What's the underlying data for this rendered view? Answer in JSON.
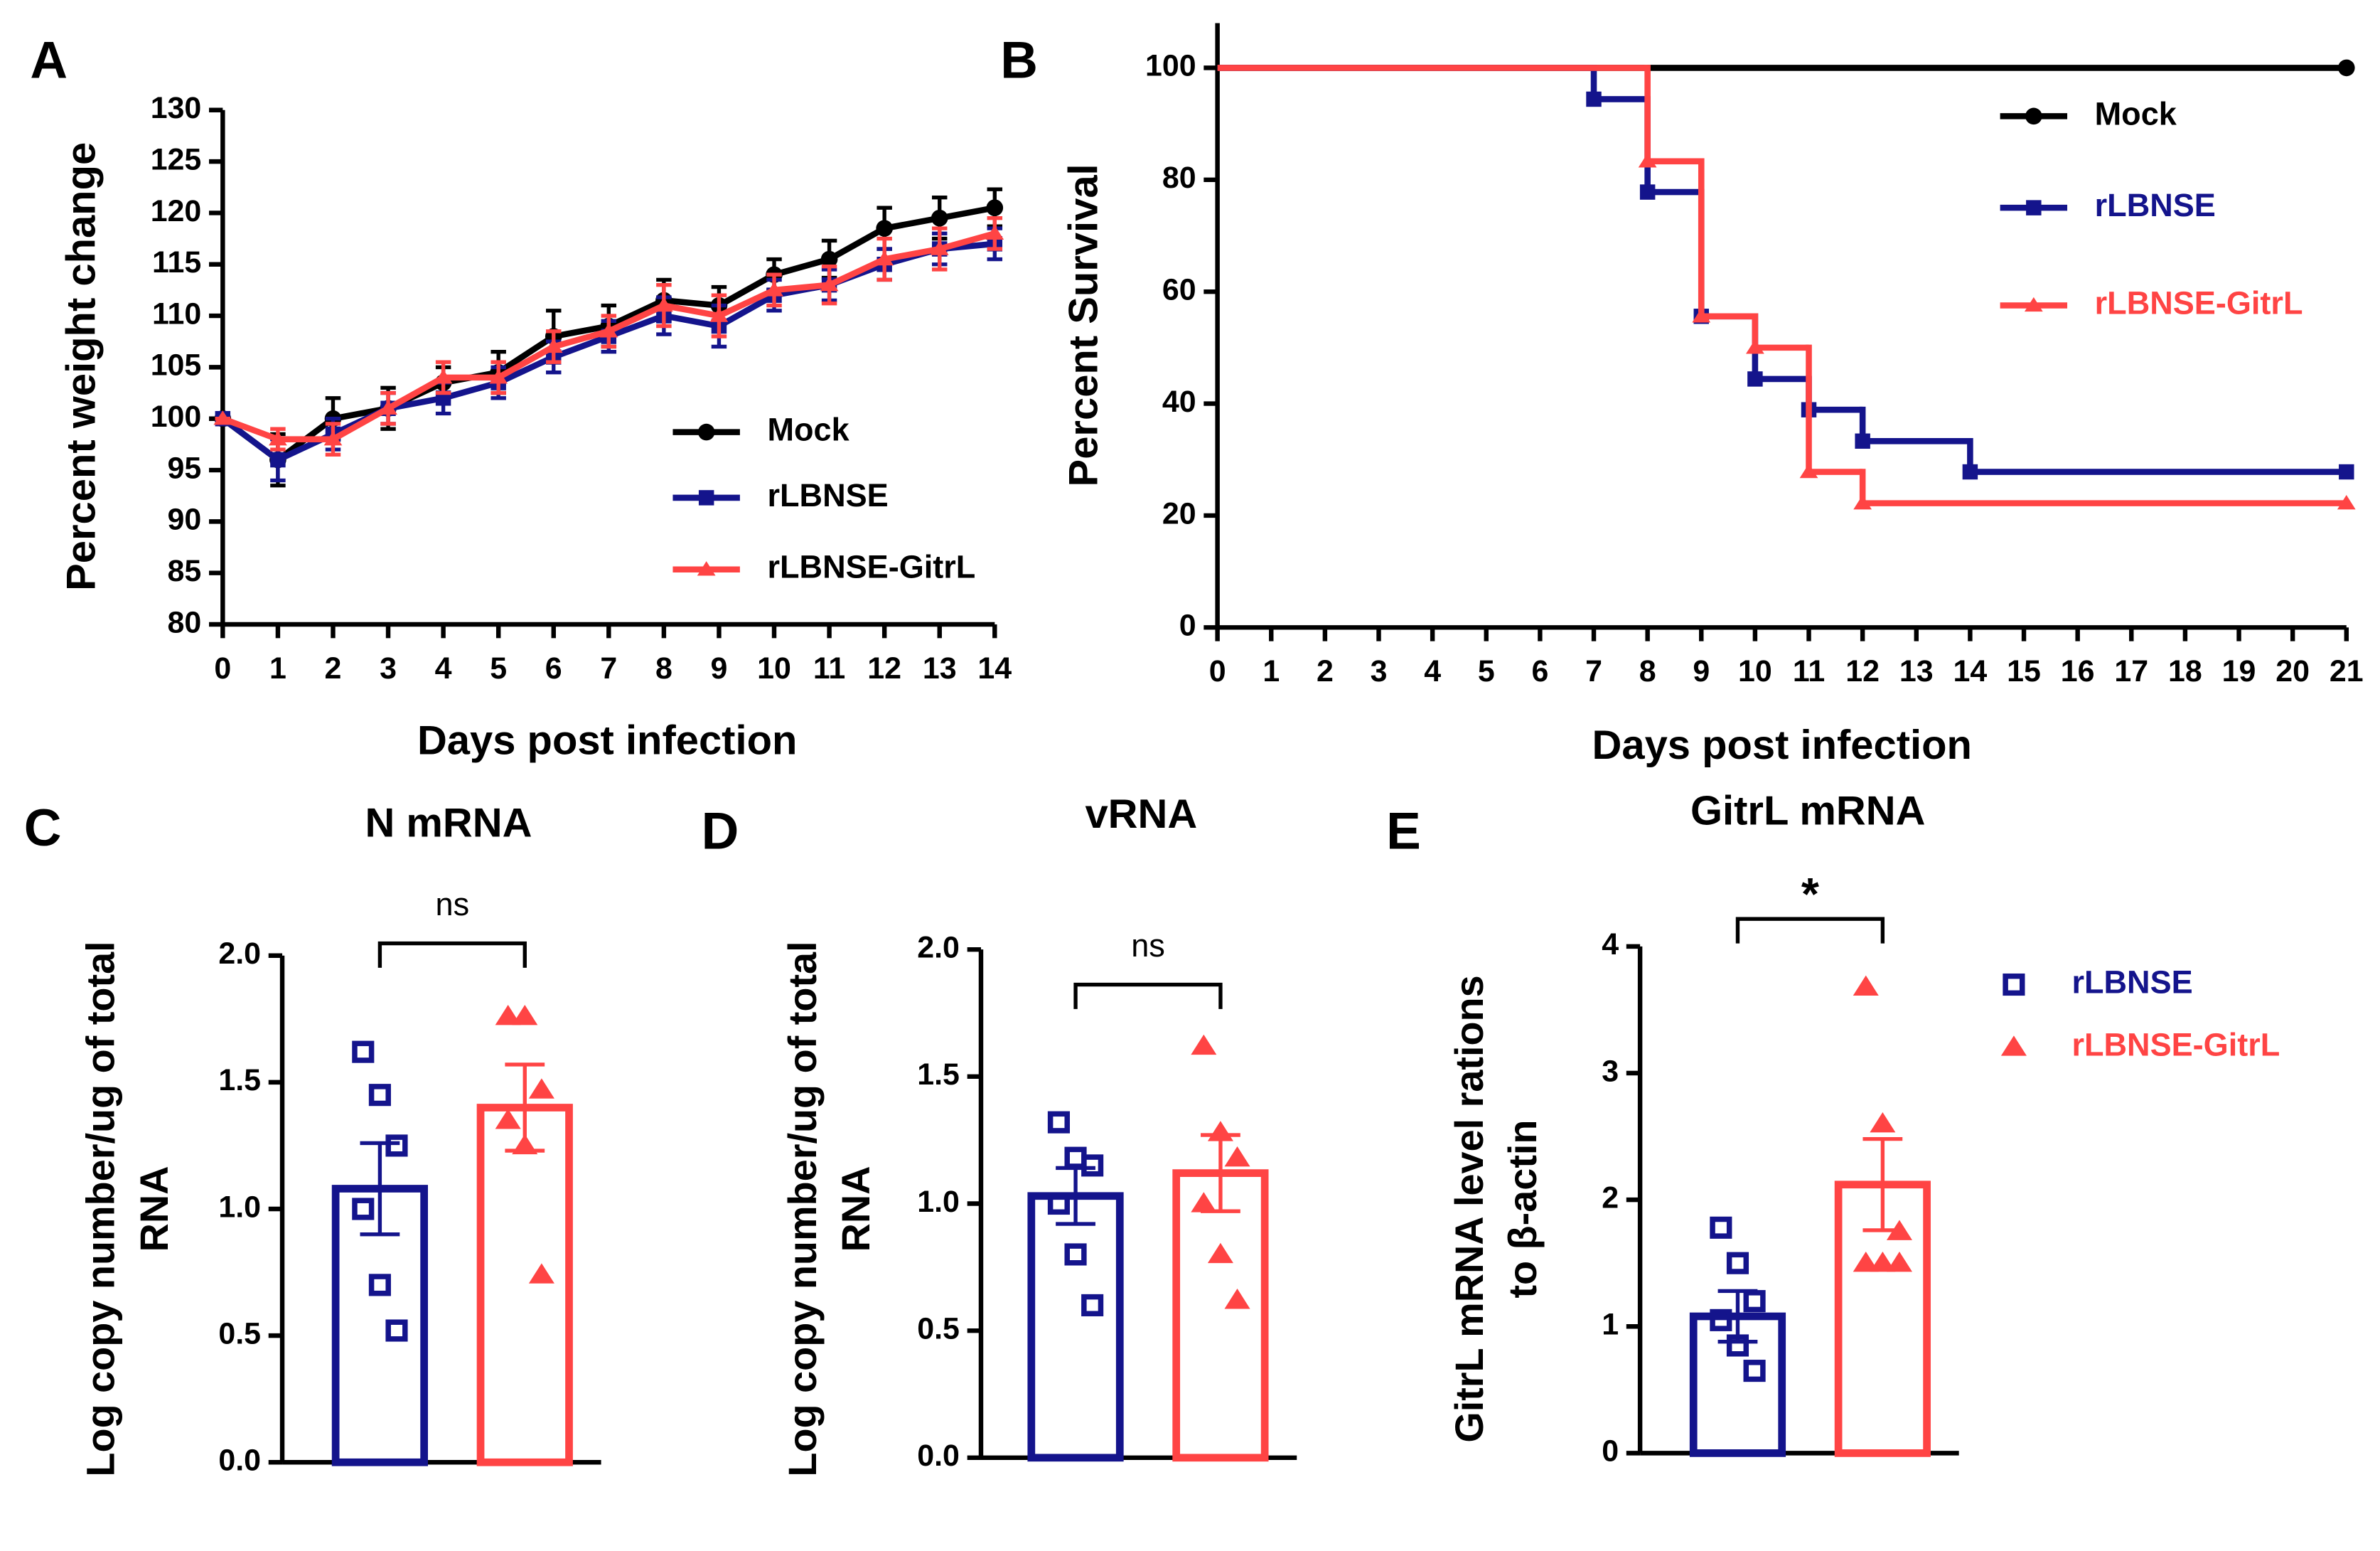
{
  "chart_data": [
    {
      "type": "line",
      "panel_label": "A",
      "xlabel": "Days post infection",
      "ylabel": "Percent weight change",
      "x": [
        0,
        1,
        2,
        3,
        4,
        5,
        6,
        7,
        8,
        9,
        10,
        11,
        12,
        13,
        14
      ],
      "xlim": [
        0,
        14
      ],
      "xticks": [
        0,
        1,
        2,
        3,
        4,
        5,
        6,
        7,
        8,
        9,
        10,
        11,
        12,
        13,
        14
      ],
      "ylim": [
        80,
        130
      ],
      "yticks": [
        80,
        85,
        90,
        95,
        100,
        105,
        110,
        115,
        120,
        125,
        130
      ],
      "series": [
        {
          "name": "Mock",
          "color": "#000000",
          "marker": "circle",
          "values": [
            100,
            96,
            100,
            101,
            103.5,
            104.5,
            108,
            109,
            111.5,
            111,
            114,
            115.5,
            118.5,
            119.5,
            120.5
          ],
          "errors": [
            0,
            2.5,
            2,
            2,
            1.5,
            2,
            2.5,
            2,
            2,
            1.8,
            1.5,
            1.8,
            2,
            2,
            1.8
          ]
        },
        {
          "name": "rLBNSE",
          "color": "#14148c",
          "marker": "square",
          "values": [
            100,
            96,
            98.5,
            101,
            102,
            103.5,
            106,
            108,
            110,
            109,
            112,
            113,
            115,
            116.5,
            117
          ],
          "errors": [
            0,
            2,
            1.5,
            1.5,
            1.5,
            1.5,
            1.5,
            1.5,
            1.8,
            2,
            1.5,
            1.5,
            1.5,
            1.5,
            1.5
          ]
        },
        {
          "name": "rLBNSE-GitrL",
          "color": "#ff4444",
          "marker": "triangle",
          "values": [
            100,
            98,
            98,
            101,
            104,
            104,
            107,
            108.5,
            111,
            110,
            112.5,
            113,
            115.5,
            116.5,
            118
          ],
          "errors": [
            0,
            1,
            1.5,
            1.5,
            1.5,
            1.5,
            1.5,
            1.5,
            2,
            2,
            1.5,
            1.8,
            2,
            2,
            1.5
          ]
        }
      ]
    },
    {
      "type": "step",
      "panel_label": "B",
      "xlabel": "Days post infection",
      "ylabel": "Percent Survival",
      "xlim": [
        0,
        21
      ],
      "xticks": [
        0,
        1,
        2,
        3,
        4,
        5,
        6,
        7,
        8,
        9,
        10,
        11,
        12,
        13,
        14,
        15,
        16,
        17,
        18,
        19,
        20,
        21
      ],
      "ylim": [
        0,
        108
      ],
      "yticks": [
        0,
        20,
        40,
        60,
        80,
        100
      ],
      "series": [
        {
          "name": "Mock",
          "color": "#000000",
          "marker": "circle",
          "x": [
            0,
            21
          ],
          "values": [
            100,
            100
          ]
        },
        {
          "name": "rLBNSE",
          "color": "#14148c",
          "marker": "square",
          "x": [
            0,
            7,
            8,
            9,
            10,
            11,
            12,
            14,
            21
          ],
          "values": [
            100,
            94.4,
            77.8,
            55.6,
            44.4,
            38.9,
            33.3,
            27.8,
            27.8
          ]
        },
        {
          "name": "rLBNSE-GitrL",
          "color": "#ff4444",
          "marker": "triangle",
          "x": [
            0,
            8,
            9,
            10,
            11,
            12,
            21
          ],
          "values": [
            100,
            83.3,
            55.6,
            50,
            27.8,
            22.2,
            22.2
          ]
        }
      ]
    },
    {
      "type": "bar",
      "panel_label": "C",
      "title": "N mRNA",
      "ylabel": [
        "Log copy number/ug of total",
        "RNA"
      ],
      "ylim": [
        0,
        2
      ],
      "yticks": [
        {
          "value": 0,
          "label": "0.0"
        },
        0.5,
        {
          "value": 1,
          "label": "1.0"
        },
        1.5,
        {
          "value": 2,
          "label": "2.0"
        }
      ],
      "annotation": "ns",
      "series": [
        {
          "color": "#14148c",
          "marker": "square-open",
          "values": [
            1.08
          ],
          "errors": [
            0.18
          ],
          "points": [
            1.62,
            1.45,
            1.25,
            1.0,
            0.7,
            0.52
          ]
        },
        {
          "color": "#ff4444",
          "marker": "triangle",
          "values": [
            1.4
          ],
          "errors": [
            0.17
          ],
          "points": [
            1.76,
            1.76,
            1.47,
            1.35,
            1.25,
            0.74
          ]
        }
      ]
    },
    {
      "type": "bar",
      "panel_label": "D",
      "title": "vRNA",
      "ylabel": [
        "Log copy number/ug of total",
        "RNA"
      ],
      "ylim": [
        0,
        2
      ],
      "yticks": [
        {
          "value": 0,
          "label": "0.0"
        },
        0.5,
        {
          "value": 1,
          "label": "1.0"
        },
        1.5,
        {
          "value": 2,
          "label": "2.0"
        }
      ],
      "annotation": "ns",
      "series": [
        {
          "color": "#14148c",
          "marker": "square-open",
          "values": [
            1.03
          ],
          "errors": [
            0.11
          ],
          "points": [
            1.32,
            1.18,
            1.15,
            1.0,
            0.8,
            0.6
          ]
        },
        {
          "color": "#ff4444",
          "marker": "triangle",
          "values": [
            1.12
          ],
          "errors": [
            0.15
          ],
          "points": [
            1.62,
            1.28,
            1.18,
            1.0,
            0.8,
            0.62
          ]
        }
      ]
    },
    {
      "type": "bar",
      "panel_label": "E",
      "title": "GitrL mRNA",
      "ylabel": [
        "GitrL mRNA  level rations",
        "to β-actin"
      ],
      "ylim": [
        0,
        4
      ],
      "yticks": [
        0,
        1,
        2,
        3,
        4
      ],
      "annotation": "*",
      "series": [
        {
          "name": "rLBNSE",
          "color": "#14148c",
          "marker": "square-open",
          "values": [
            1.08
          ],
          "errors": [
            0.2
          ],
          "points": [
            1.78,
            1.5,
            1.2,
            1.05,
            0.85,
            0.65
          ]
        },
        {
          "name": "rLBNSE-GitrL",
          "color": "#ff4444",
          "marker": "triangle",
          "values": [
            2.12
          ],
          "errors": [
            0.36
          ],
          "points": [
            3.68,
            2.6,
            1.75,
            1.5,
            1.5,
            1.5
          ]
        }
      ]
    }
  ]
}
